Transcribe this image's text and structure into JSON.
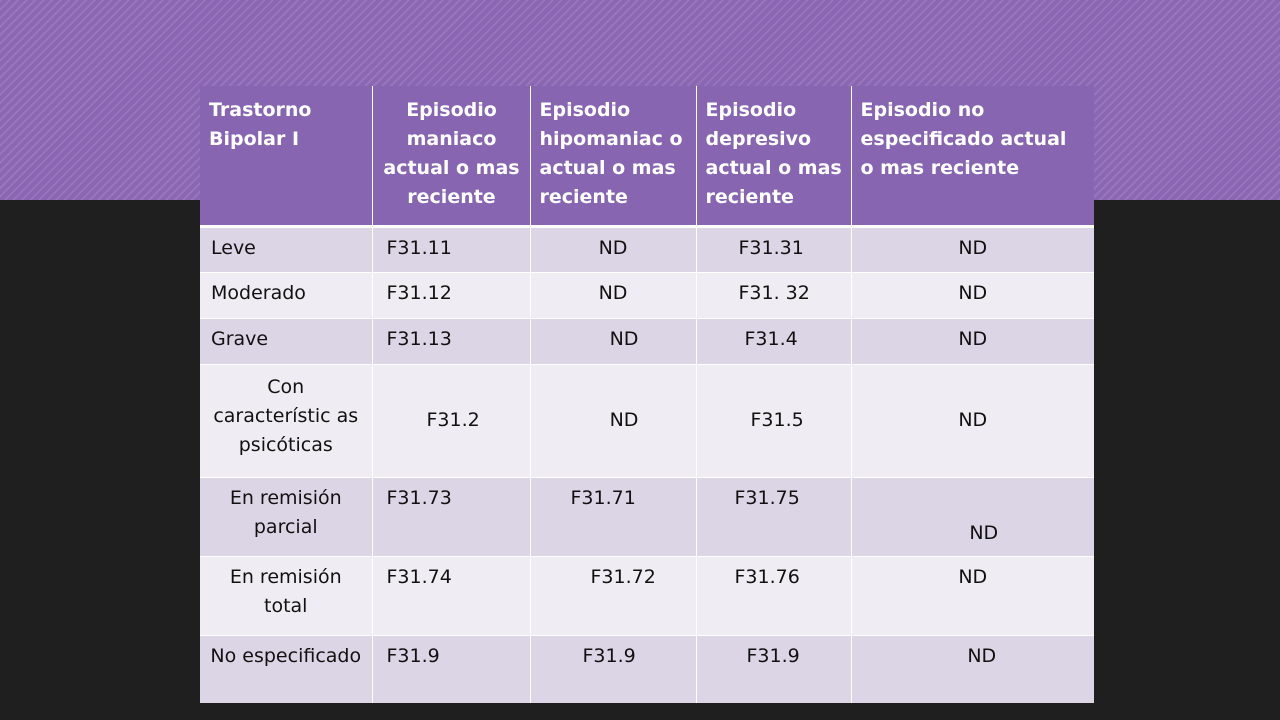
{
  "slide": {
    "header": [
      "Trastorno Bipolar I",
      "Episodio maniaco actual o mas reciente",
      "Episodio hipomaniac o actual o mas reciente",
      "Episodio depresivo actual o mas reciente",
      "Episodio no especificado actual o mas reciente"
    ],
    "rows": [
      {
        "label": "Leve",
        "cells": [
          "F31.11",
          "ND",
          "F31.31",
          "ND"
        ]
      },
      {
        "label": "Moderado",
        "cells": [
          "F31.12",
          "ND",
          "F31. 32",
          "ND"
        ]
      },
      {
        "label": "Grave",
        "cells": [
          "F31.13",
          "ND",
          "F31.4",
          "ND"
        ]
      },
      {
        "label": "Con característic as psicóticas",
        "cells": [
          "F31.2",
          "ND",
          "F31.5",
          "ND"
        ]
      },
      {
        "label": "En remisión parcial",
        "cells": [
          "F31.73",
          "F31.71",
          "F31.75",
          "ND"
        ]
      },
      {
        "label": "En remisión total",
        "cells": [
          "F31.74",
          "F31.72",
          "F31.76",
          "ND"
        ]
      },
      {
        "label": "No especificado",
        "cells": [
          "F31.9",
          "F31.9",
          "F31.9",
          "ND"
        ]
      }
    ]
  },
  "colors": {
    "header_bg": "#8765b1",
    "band_bg": "#8b66b3",
    "row_dark": "#dcd5e6",
    "row_light": "#efedf3",
    "page_bg": "#1f1f1f"
  }
}
